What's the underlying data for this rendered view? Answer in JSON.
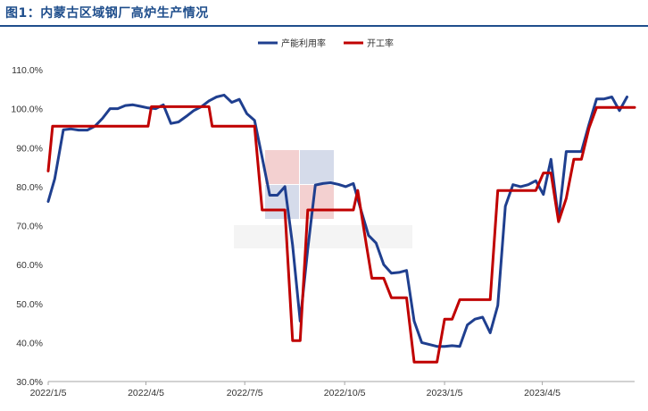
{
  "title": "图1：内蒙古区域钢厂高炉生产情况",
  "colors": {
    "title": "#1f4e8c",
    "series1": "#1f3f8f",
    "series2": "#c00000"
  },
  "chart_data": {
    "type": "line",
    "y_axis": {
      "min": 30,
      "max": 110,
      "step": 10,
      "tick_labels": [
        "30.0%",
        "40.0%",
        "50.0%",
        "60.0%",
        "70.0%",
        "80.0%",
        "90.0%",
        "100.0%",
        "110.0%"
      ]
    },
    "x_axis": {
      "range": [
        "2022-01-05",
        "2023-06-29"
      ],
      "tick_labels": [
        {
          "date": "2022-01-05",
          "label": "2022/1/5"
        },
        {
          "date": "2022-04-05",
          "label": "2022/4/5"
        },
        {
          "date": "2022-07-05",
          "label": "2022/7/5"
        },
        {
          "date": "2022-10-05",
          "label": "2022/10/5"
        },
        {
          "date": "2023-01-05",
          "label": "2023/1/5"
        },
        {
          "date": "2023-04-05",
          "label": "2023/4/5"
        }
      ]
    },
    "legend_position": "top-right",
    "grid": false,
    "series": [
      {
        "name": "产能利用率",
        "color": "#1f3f8f",
        "points": [
          [
            "2022-01-05",
            76.2
          ],
          [
            "2022-01-11",
            82.0
          ],
          [
            "2022-01-19",
            94.6
          ],
          [
            "2022-01-26",
            94.8
          ],
          [
            "2022-02-02",
            94.5
          ],
          [
            "2022-02-10",
            94.5
          ],
          [
            "2022-02-17",
            95.5
          ],
          [
            "2022-02-24",
            97.5
          ],
          [
            "2022-03-03",
            100.0
          ],
          [
            "2022-03-10",
            100.0
          ],
          [
            "2022-03-17",
            100.8
          ],
          [
            "2022-03-24",
            101.0
          ],
          [
            "2022-03-31",
            100.6
          ],
          [
            "2022-04-07",
            100.2
          ],
          [
            "2022-04-14",
            100.0
          ],
          [
            "2022-04-21",
            101.0
          ],
          [
            "2022-04-28",
            96.2
          ],
          [
            "2022-05-05",
            96.6
          ],
          [
            "2022-05-12",
            98.0
          ],
          [
            "2022-05-19",
            99.5
          ],
          [
            "2022-05-26",
            100.5
          ],
          [
            "2022-06-02",
            102.0
          ],
          [
            "2022-06-09",
            103.0
          ],
          [
            "2022-06-16",
            103.5
          ],
          [
            "2022-06-23",
            101.6
          ],
          [
            "2022-06-30",
            102.4
          ],
          [
            "2022-07-07",
            98.7
          ],
          [
            "2022-07-14",
            97.0
          ],
          [
            "2022-07-21",
            87.5
          ],
          [
            "2022-07-28",
            77.8
          ],
          [
            "2022-08-04",
            77.8
          ],
          [
            "2022-08-11",
            80.0
          ],
          [
            "2022-08-18",
            65.0
          ],
          [
            "2022-08-25",
            45.5
          ],
          [
            "2022-09-01",
            64.0
          ],
          [
            "2022-09-08",
            80.4
          ],
          [
            "2022-09-15",
            80.8
          ],
          [
            "2022-09-22",
            81.0
          ],
          [
            "2022-09-29",
            80.6
          ],
          [
            "2022-10-06",
            80.0
          ],
          [
            "2022-10-13",
            80.8
          ],
          [
            "2022-10-20",
            74.0
          ],
          [
            "2022-10-27",
            67.5
          ],
          [
            "2022-11-03",
            65.5
          ],
          [
            "2022-11-10",
            60.0
          ],
          [
            "2022-11-17",
            57.8
          ],
          [
            "2022-11-24",
            58.0
          ],
          [
            "2022-12-01",
            58.5
          ],
          [
            "2022-12-08",
            45.5
          ],
          [
            "2022-12-15",
            40.0
          ],
          [
            "2022-12-22",
            39.5
          ],
          [
            "2022-12-29",
            39.0
          ],
          [
            "2023-01-05",
            39.0
          ],
          [
            "2023-01-12",
            39.2
          ],
          [
            "2023-01-19",
            39.0
          ],
          [
            "2023-01-26",
            44.5
          ],
          [
            "2023-02-02",
            46.0
          ],
          [
            "2023-02-09",
            46.5
          ],
          [
            "2023-02-16",
            42.5
          ],
          [
            "2023-02-23",
            49.5
          ],
          [
            "2023-03-02",
            75.0
          ],
          [
            "2023-03-09",
            80.5
          ],
          [
            "2023-03-16",
            80.0
          ],
          [
            "2023-03-23",
            80.5
          ],
          [
            "2023-03-30",
            81.5
          ],
          [
            "2023-04-06",
            78.0
          ],
          [
            "2023-04-13",
            87.0
          ],
          [
            "2023-04-20",
            71.5
          ],
          [
            "2023-04-27",
            89.0
          ],
          [
            "2023-05-04",
            89.0
          ],
          [
            "2023-05-11",
            89.0
          ],
          [
            "2023-05-18",
            96.0
          ],
          [
            "2023-05-25",
            102.5
          ],
          [
            "2023-06-01",
            102.5
          ],
          [
            "2023-06-08",
            103.0
          ],
          [
            "2023-06-15",
            99.5
          ],
          [
            "2023-06-22",
            103.0
          ]
        ]
      },
      {
        "name": "开工率",
        "color": "#c00000",
        "points": [
          [
            "2022-01-05",
            84.0
          ],
          [
            "2022-01-09",
            95.5
          ],
          [
            "2022-04-07",
            95.5
          ],
          [
            "2022-04-10",
            100.5
          ],
          [
            "2022-06-02",
            100.5
          ],
          [
            "2022-06-05",
            95.5
          ],
          [
            "2022-07-14",
            95.5
          ],
          [
            "2022-07-21",
            74.0
          ],
          [
            "2022-08-11",
            74.0
          ],
          [
            "2022-08-18",
            40.5
          ],
          [
            "2022-08-25",
            40.5
          ],
          [
            "2022-09-01",
            74.0
          ],
          [
            "2022-10-13",
            74.0
          ],
          [
            "2022-10-17",
            79.0
          ],
          [
            "2022-10-25",
            65.0
          ],
          [
            "2022-10-30",
            56.5
          ],
          [
            "2022-11-10",
            56.5
          ],
          [
            "2022-11-17",
            51.5
          ],
          [
            "2022-12-01",
            51.5
          ],
          [
            "2022-12-08",
            35.0
          ],
          [
            "2022-12-29",
            35.0
          ],
          [
            "2023-01-05",
            46.0
          ],
          [
            "2023-01-12",
            46.0
          ],
          [
            "2023-01-19",
            51.0
          ],
          [
            "2023-02-16",
            51.0
          ],
          [
            "2023-02-23",
            79.0
          ],
          [
            "2023-03-30",
            79.0
          ],
          [
            "2023-04-06",
            83.5
          ],
          [
            "2023-04-13",
            83.5
          ],
          [
            "2023-04-20",
            71.0
          ],
          [
            "2023-04-27",
            77.0
          ],
          [
            "2023-05-04",
            87.0
          ],
          [
            "2023-05-11",
            87.0
          ],
          [
            "2023-05-18",
            95.0
          ],
          [
            "2023-05-25",
            100.3
          ],
          [
            "2023-06-29",
            100.3
          ]
        ]
      }
    ]
  }
}
